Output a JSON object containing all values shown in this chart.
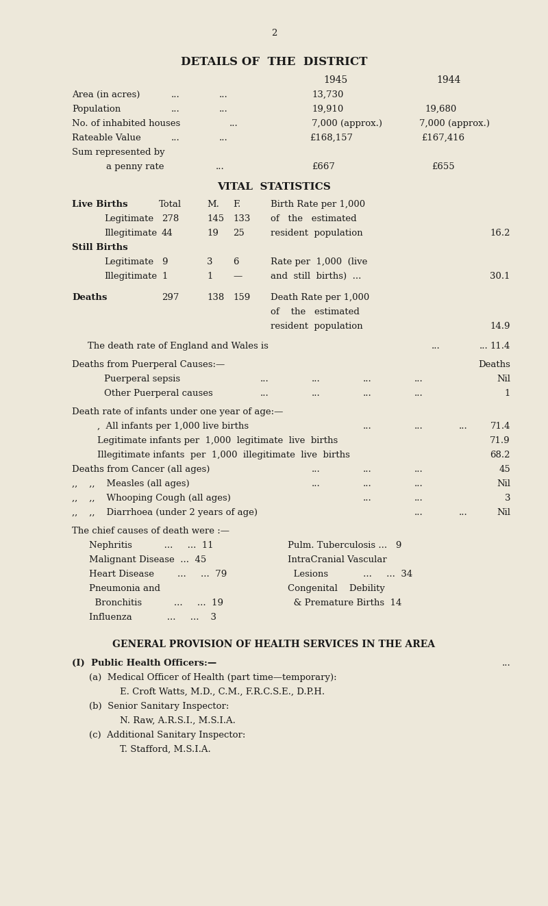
{
  "bg_color": "#ede8da",
  "text_color": "#1a1a1a",
  "fig_width": 8.0,
  "fig_height": 13.23,
  "dpi": 100,
  "page_number": "2",
  "title": "DETAILS OF  THE  DISTRICT",
  "general_title": "GENERAL PROVISION OF HEALTH SERVICES IN THE AREA"
}
